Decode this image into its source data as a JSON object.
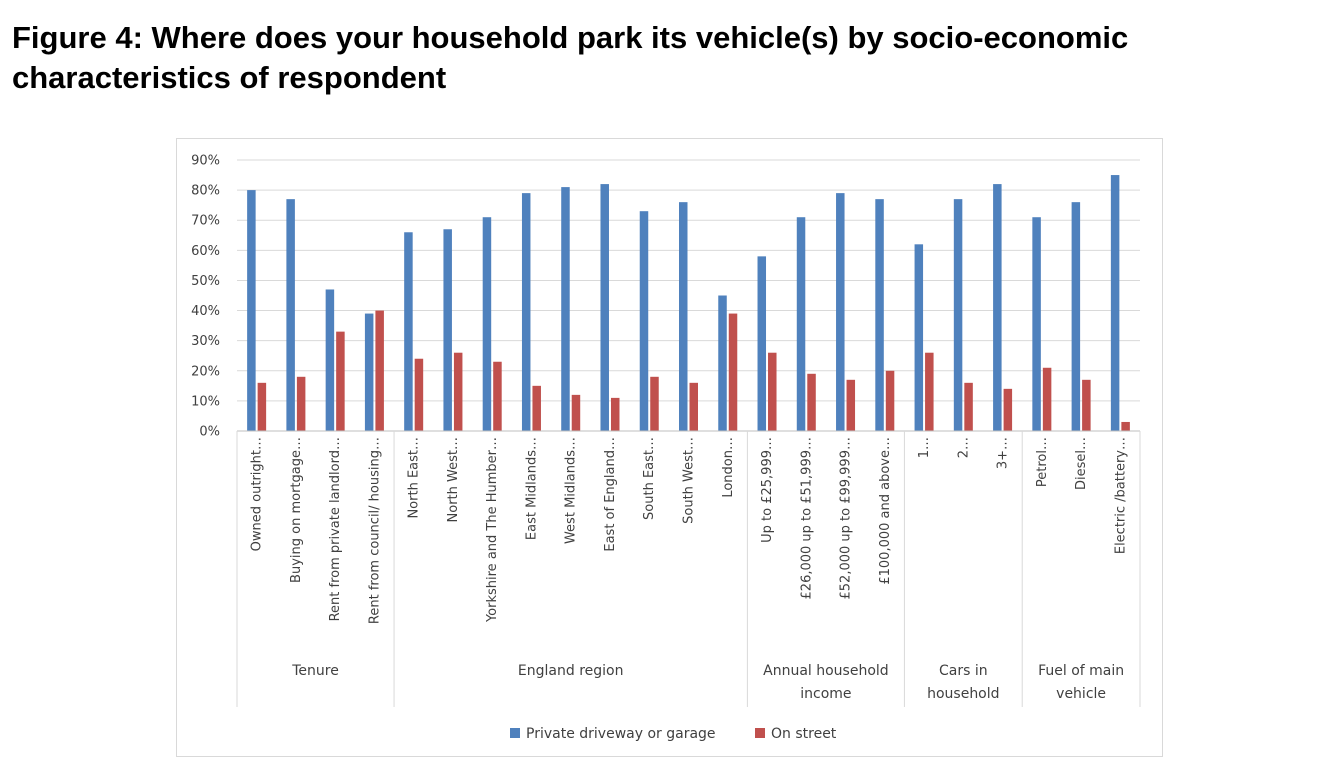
{
  "title": "Figure 4: Where does your household park its vehicle(s) by socio-economic characteristics of respondent",
  "chart_data": {
    "type": "bar",
    "title": "",
    "xlabel": "",
    "ylabel": "",
    "ylim": [
      0,
      90
    ],
    "yticks": [
      "0%",
      "10%",
      "20%",
      "30%",
      "40%",
      "50%",
      "60%",
      "70%",
      "80%",
      "90%"
    ],
    "gridlines": true,
    "legend_position": "bottom",
    "categories": [
      "Owned outright…",
      "Buying on mortgage…",
      "Rent from private landlord…",
      "Rent from council/ housing…",
      "North East…",
      "North West…",
      "Yorkshire and The Humber…",
      "East Midlands…",
      "West Midlands…",
      "East of England…",
      "South East…",
      "South West…",
      "London…",
      "Up to £25,999…",
      "£26,000 up to £51,999…",
      "£52,000 up to £99,999…",
      "£100,000 and above…",
      "1…",
      "2…",
      "3+…",
      "Petrol…",
      "Diesel…",
      "Electric /battery…"
    ],
    "groups": [
      {
        "label": "Tenure",
        "lines": [
          "Tenure"
        ],
        "start": 0,
        "end": 3
      },
      {
        "label": "England region",
        "lines": [
          "England region"
        ],
        "start": 4,
        "end": 12
      },
      {
        "label": "Annual household income",
        "lines": [
          "Annual household",
          "income"
        ],
        "start": 13,
        "end": 16
      },
      {
        "label": "Cars in household",
        "lines": [
          "Cars in",
          "household"
        ],
        "start": 17,
        "end": 19
      },
      {
        "label": "Fuel of main vehicle",
        "lines": [
          "Fuel of main",
          "vehicle"
        ],
        "start": 20,
        "end": 22
      }
    ],
    "series": [
      {
        "name": "Private driveway or garage",
        "color": "#4f81bd",
        "values": [
          80,
          77,
          47,
          39,
          66,
          67,
          71,
          79,
          81,
          82,
          73,
          76,
          45,
          58,
          71,
          79,
          77,
          62,
          77,
          82,
          71,
          76,
          85
        ]
      },
      {
        "name": "On street",
        "color": "#c0504d",
        "values": [
          16,
          18,
          33,
          40,
          24,
          26,
          23,
          15,
          12,
          11,
          18,
          16,
          39,
          26,
          19,
          17,
          20,
          26,
          16,
          14,
          21,
          17,
          3
        ]
      }
    ]
  }
}
